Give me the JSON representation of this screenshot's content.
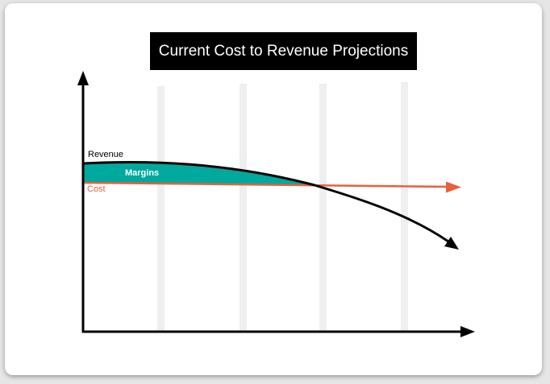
{
  "title": "Current Cost to Revenue Projections",
  "labels": {
    "revenue": "Revenue",
    "margins": "Margins",
    "cost": "Cost"
  },
  "colors": {
    "title_background": "#000000",
    "title_text": "#ffffff",
    "axes": "#000000",
    "revenue": "#000000",
    "cost": "#e8603c",
    "margins_fill": "#00a99d",
    "margins_text": "#ffffff",
    "gridlines": "#efefef",
    "card_background": "#ffffff"
  }
}
